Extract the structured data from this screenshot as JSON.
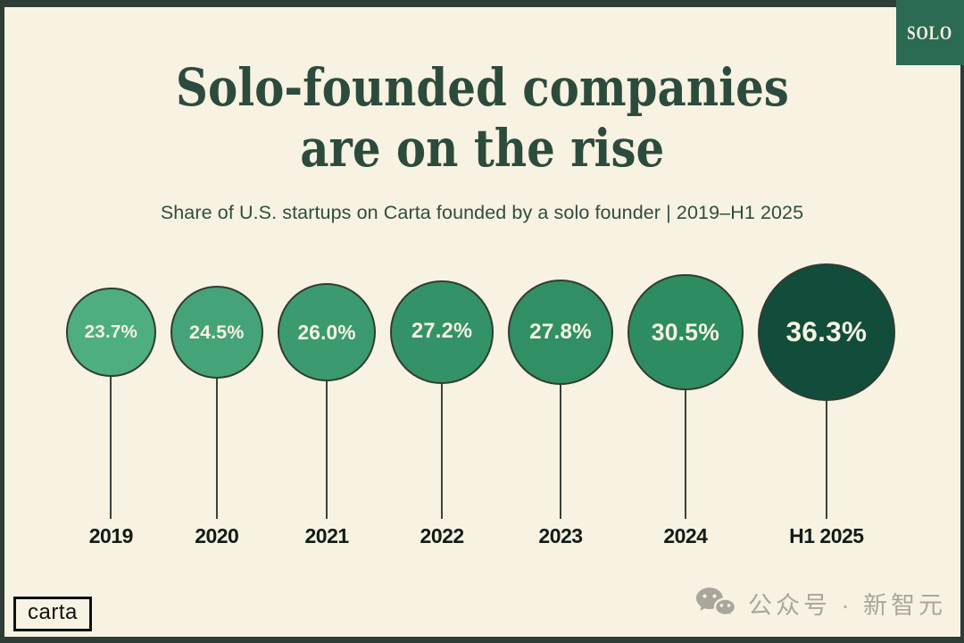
{
  "page": {
    "badge_label": "SOLO",
    "title_line1": "Solo-founded companies",
    "title_line2": "are on the rise",
    "subtitle": "Share of U.S. startups on Carta founded by a solo founder | 2019–H1 2025",
    "logo_label": "carta",
    "watermark_text": "公众号 · 新智元"
  },
  "colors": {
    "background": "#f7f2e2",
    "frame": "#2e3d35",
    "badge_background": "#2b6a53",
    "title_text": "#2d4b3d",
    "bubble_outline": "#313c32",
    "bubble_value_text": "#f6f2e4",
    "year_text": "#131c16",
    "watermark_gray": "#a9a79c"
  },
  "chart_data": {
    "type": "bar",
    "style": "proportional_circles",
    "title": "Solo-founded companies are on the rise",
    "subtitle": "Share of U.S. startups on Carta founded by a solo founder | 2019–H1 2025",
    "categories": [
      "2019",
      "2020",
      "2021",
      "2022",
      "2023",
      "2024",
      "H1 2025"
    ],
    "values": [
      23.7,
      24.5,
      26.0,
      27.2,
      27.8,
      30.5,
      36.3
    ],
    "value_labels": [
      "23.7%",
      "24.5%",
      "26.0%",
      "27.2%",
      "27.8%",
      "30.5%",
      "36.3%"
    ],
    "unit": "%",
    "circle_colors": [
      "#4fae80",
      "#45a477",
      "#3b9b6e",
      "#349267",
      "#318f64",
      "#2d8c60",
      "#114d3a"
    ],
    "legend": "none",
    "grid": false,
    "source_brand": "carta"
  }
}
